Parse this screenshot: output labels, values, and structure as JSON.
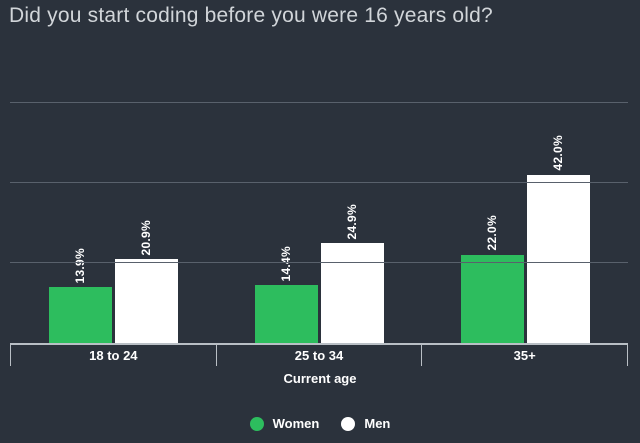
{
  "chart_data": {
    "type": "bar",
    "title": "Did you start coding before you were 16 years old?",
    "xlabel": "Current age",
    "ylabel": "",
    "categories": [
      "18 to 24",
      "25 to 34",
      "35+"
    ],
    "series": [
      {
        "name": "Women",
        "color": "#2dbd5e",
        "values": [
          13.9,
          14.4,
          22.0
        ],
        "labels": [
          "13.9%",
          "14.4%",
          "22.0%"
        ]
      },
      {
        "name": "Men",
        "color": "#ffffff",
        "values": [
          20.9,
          24.9,
          42.0
        ],
        "labels": [
          "20.9%",
          "24.9%",
          "42.0%"
        ]
      }
    ],
    "ylim": [
      0,
      70
    ],
    "yticks": [
      0,
      20,
      40,
      60
    ],
    "ytick_labels_visible": false,
    "grid": "horizontal",
    "bar_label_style": "rotated-vertical, bold, white, percent with one decimal",
    "legend_position": "bottom-center"
  },
  "colors": {
    "background": "#2b323c",
    "title_text": "#d1d5d9",
    "gridline": "#59616c",
    "axis_line": "#b9bfc5",
    "label_text": "#ffffff",
    "women_green": "#2dbd5e",
    "men_white": "#ffffff"
  }
}
